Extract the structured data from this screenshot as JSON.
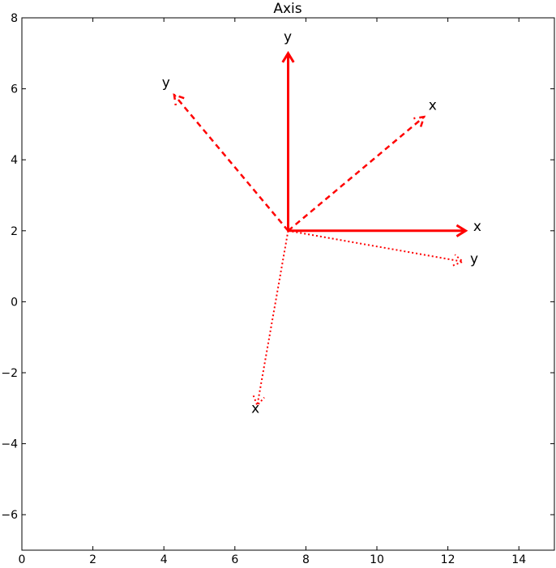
{
  "chart_data": {
    "type": "quiver",
    "title": "Axis",
    "xlabel": "",
    "ylabel": "",
    "xlim": [
      0,
      15
    ],
    "ylim": [
      -7,
      8
    ],
    "xticks": [
      0,
      2,
      4,
      6,
      8,
      10,
      12,
      14
    ],
    "yticks": [
      -6,
      -4,
      -2,
      0,
      2,
      4,
      6,
      8
    ],
    "xtick_labels": [
      "0",
      "2",
      "4",
      "6",
      "8",
      "10",
      "12",
      "14"
    ],
    "ytick_labels": [
      "−6",
      "−4",
      "−2",
      "0",
      "2",
      "4",
      "6",
      "8"
    ],
    "grid": false,
    "color": "#ff0000",
    "arrows": [
      {
        "style": "solid",
        "from": [
          7.5,
          2
        ],
        "to": [
          12.5,
          2
        ],
        "label": "x",
        "label_at": [
          12.83,
          2.13
        ]
      },
      {
        "style": "solid",
        "from": [
          7.5,
          2
        ],
        "to": [
          7.5,
          7
        ],
        "label": "y",
        "label_at": [
          7.49,
          7.47
        ]
      },
      {
        "style": "dashed",
        "from": [
          7.5,
          2
        ],
        "to": [
          11.33,
          5.21
        ],
        "label": "x",
        "label_at": [
          11.57,
          5.55
        ]
      },
      {
        "style": "dashed",
        "from": [
          7.5,
          2
        ],
        "to": [
          4.29,
          5.83
        ],
        "label": "y",
        "label_at": [
          4.06,
          6.19
        ]
      },
      {
        "style": "dotted",
        "from": [
          7.5,
          2
        ],
        "to": [
          6.63,
          -2.92
        ],
        "label": "x",
        "label_at": [
          6.58,
          -2.99
        ]
      },
      {
        "style": "dotted",
        "from": [
          7.5,
          2
        ],
        "to": [
          12.42,
          1.13
        ],
        "label": "y",
        "label_at": [
          12.74,
          1.22
        ]
      }
    ]
  }
}
